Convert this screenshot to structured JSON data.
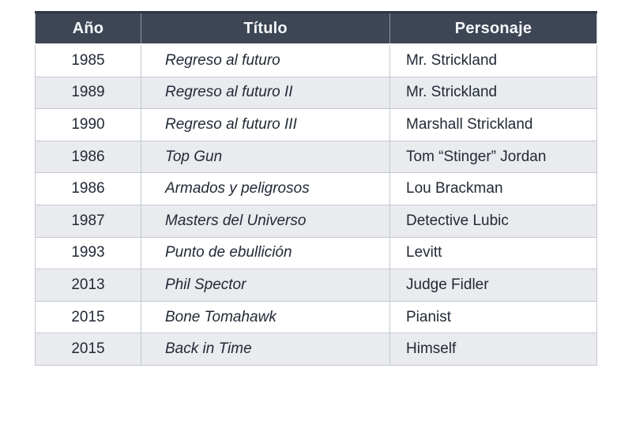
{
  "chart_data": {
    "type": "table",
    "columns": [
      {
        "key": "year",
        "label": "Año",
        "align": "center"
      },
      {
        "key": "title",
        "label": "Título",
        "align": "left",
        "style": "italic"
      },
      {
        "key": "character",
        "label": "Personaje",
        "align": "left"
      }
    ],
    "rows": [
      {
        "year": "1985",
        "title": "Regreso al futuro",
        "character": "Mr. Strickland"
      },
      {
        "year": "1989",
        "title": "Regreso al futuro II",
        "character": "Mr. Strickland"
      },
      {
        "year": "1990",
        "title": "Regreso al futuro III",
        "character": "Marshall Strickland"
      },
      {
        "year": "1986",
        "title": "Top Gun",
        "character": "Tom “Stinger” Jordan"
      },
      {
        "year": "1986",
        "title": "Armados y peligrosos",
        "character": "Lou Brackman"
      },
      {
        "year": "1987",
        "title": "Masters del Universo",
        "character": "Detective Lubic"
      },
      {
        "year": "1993",
        "title": "Punto de ebullición",
        "character": "Levitt"
      },
      {
        "year": "2013",
        "title": "Phil Spector",
        "character": "Judge Fidler"
      },
      {
        "year": "2015",
        "title": "Bone Tomahawk",
        "character": "Pianist"
      },
      {
        "year": "2015",
        "title": "Back in Time",
        "character": "Himself"
      }
    ],
    "layout": {
      "zebra_striping": true,
      "header_position": "top"
    },
    "colors": {
      "header_bg": "#3e4655",
      "header_top_border": "#2e3642",
      "header_text": "#f5f6f8",
      "row_bg": "#ffffff",
      "row_alt_bg": "#e9ebee",
      "cell_border": "#c3c8d0",
      "text": "#222a36",
      "page_bg": "#ffffff"
    }
  }
}
